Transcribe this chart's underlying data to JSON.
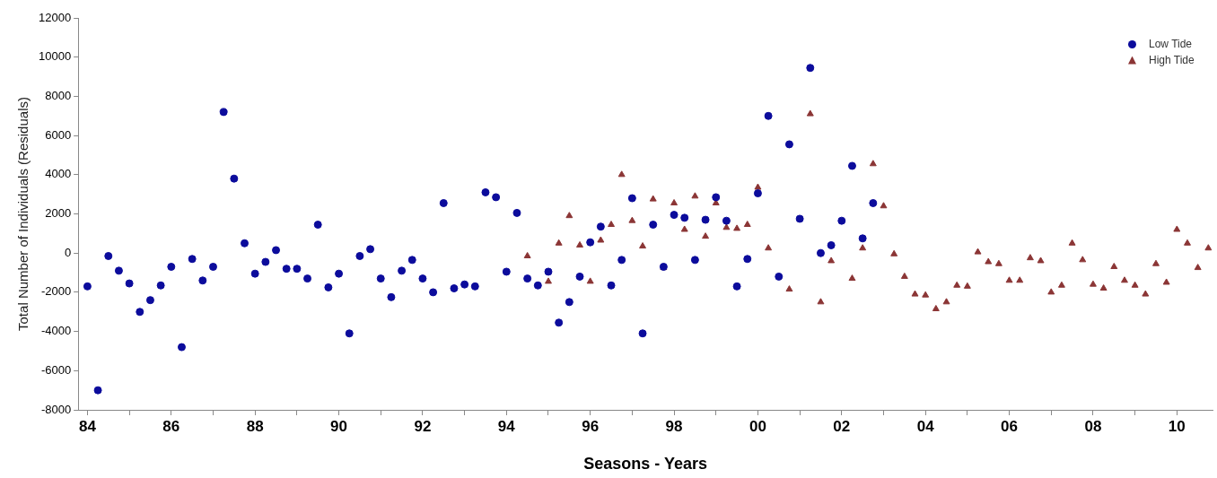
{
  "chart_data": {
    "type": "scatter",
    "xlabel": "Seasons - Years",
    "ylabel": "Total Number of Individuals (Residuals)",
    "xlim": [
      1983.78,
      2010.85
    ],
    "ylim": [
      -8000,
      12000
    ],
    "xticks": [
      {
        "value": 1984,
        "label": "84"
      },
      {
        "value": 1985,
        "label": null
      },
      {
        "value": 1986,
        "label": "86"
      },
      {
        "value": 1987,
        "label": null
      },
      {
        "value": 1988,
        "label": "88"
      },
      {
        "value": 1989,
        "label": null
      },
      {
        "value": 1990,
        "label": "90"
      },
      {
        "value": 1991,
        "label": null
      },
      {
        "value": 1992,
        "label": "92"
      },
      {
        "value": 1993,
        "label": null
      },
      {
        "value": 1994,
        "label": "94"
      },
      {
        "value": 1995,
        "label": null
      },
      {
        "value": 1996,
        "label": "96"
      },
      {
        "value": 1997,
        "label": null
      },
      {
        "value": 1998,
        "label": "98"
      },
      {
        "value": 1999,
        "label": null
      },
      {
        "value": 2000,
        "label": "00"
      },
      {
        "value": 2001,
        "label": null
      },
      {
        "value": 2002,
        "label": "02"
      },
      {
        "value": 2003,
        "label": null
      },
      {
        "value": 2004,
        "label": "04"
      },
      {
        "value": 2005,
        "label": null
      },
      {
        "value": 2006,
        "label": "06"
      },
      {
        "value": 2007,
        "label": null
      },
      {
        "value": 2008,
        "label": "08"
      },
      {
        "value": 2009,
        "label": null
      },
      {
        "value": 2010,
        "label": "10"
      }
    ],
    "yticks": [
      -8000,
      -6000,
      -4000,
      -2000,
      0,
      2000,
      4000,
      6000,
      8000,
      10000,
      12000
    ],
    "grid": false,
    "legend": "top right",
    "series": [
      {
        "name": "Low Tide",
        "color": "#0c0c9c",
        "marker": "circle",
        "x": [
          1984,
          1984.25,
          1984.5,
          1984.75,
          1985,
          1985.25,
          1985.5,
          1985.75,
          1986,
          1986.25,
          1986.5,
          1986.75,
          1987,
          1987.25,
          1987.5,
          1987.75,
          1988,
          1988.25,
          1988.5,
          1988.75,
          1989,
          1989.25,
          1989.5,
          1989.75,
          1990,
          1990.25,
          1990.5,
          1990.75,
          1991,
          1991.25,
          1991.5,
          1991.75,
          1992,
          1992.25,
          1992.5,
          1992.75,
          1993,
          1993.25,
          1993.5,
          1993.75,
          1994,
          1994.25,
          1994.5,
          1994.75,
          1995,
          1995.25,
          1995.5,
          1995.75,
          1996,
          1996.25,
          1996.5,
          1996.75,
          1997,
          1997.25,
          1997.5,
          1997.75,
          1998,
          1998.25,
          1998.5,
          1998.75,
          1999,
          1999.25,
          1999.5,
          1999.75,
          2000,
          2000.25,
          2000.5,
          2000.75,
          2001,
          2001.25,
          2001.5,
          2001.75,
          2002,
          2002.25,
          2002.5,
          2002.75
        ],
        "values": [
          -1700,
          -7000,
          -150,
          -900,
          -1550,
          -3000,
          -2400,
          -1650,
          -700,
          -4800,
          -300,
          -1400,
          -700,
          7200,
          3800,
          500,
          -1050,
          -450,
          150,
          -800,
          -800,
          -1300,
          1450,
          -1750,
          -1050,
          -4100,
          -150,
          200,
          -1300,
          -2250,
          -900,
          -350,
          -1300,
          -2000,
          2550,
          -1800,
          -1600,
          -1700,
          3100,
          2850,
          -950,
          2050,
          -1300,
          -1650,
          -950,
          -3550,
          -2500,
          -1200,
          550,
          1350,
          -1650,
          -350,
          2800,
          -4100,
          1450,
          -700,
          1950,
          1800,
          -350,
          1700,
          2850,
          1650,
          -1700,
          -300,
          3050,
          7000,
          -1200,
          5550,
          1750,
          9450,
          0,
          400,
          1650,
          4450,
          750,
          2550
        ]
      },
      {
        "name": "High Tide",
        "color": "#8b3535",
        "marker": "triangle",
        "x": [
          1994.5,
          1995,
          1995.25,
          1995.5,
          1995.75,
          1996,
          1996.25,
          1996.5,
          1996.75,
          1997,
          1997.25,
          1997.5,
          1997.75,
          1998,
          1998.25,
          1998.5,
          1998.75,
          1999,
          1999.25,
          1999.5,
          1999.75,
          2000,
          2000.25,
          2000.5,
          2000.75,
          2001.25,
          2001.5,
          2001.75,
          2002.25,
          2002.5,
          2002.75,
          2003,
          2003.25,
          2003.5,
          2003.75,
          2004,
          2004.25,
          2004.5,
          2004.75,
          2005,
          2005.25,
          2005.5,
          2005.75,
          2006,
          2006.25,
          2006.5,
          2006.75,
          2007,
          2007.25,
          2007.5,
          2007.75,
          2008,
          2008.25,
          2008.5,
          2008.75,
          2009,
          2009.25,
          2009.5,
          2009.75,
          2010,
          2010.25,
          2010.5,
          2010.75
        ],
        "values": [
          -150,
          -1450,
          500,
          1900,
          400,
          -1450,
          650,
          1450,
          4000,
          1650,
          350,
          2750,
          -750,
          2550,
          1200,
          2900,
          850,
          2550,
          1300,
          1250,
          1450,
          3350,
          250,
          null,
          -1850,
          7100,
          -2500,
          -400,
          -1300,
          250,
          4550,
          2400,
          -50,
          -1200,
          -2100,
          -2150,
          -2850,
          -2500,
          -1650,
          -1700,
          50,
          -450,
          -550,
          -1400,
          -1400,
          -250,
          -400,
          -2000,
          -1650,
          500,
          -350,
          -1600,
          -1800,
          -700,
          -1400,
          -1650,
          -2100,
          -550,
          -1500,
          1200,
          500,
          -750,
          250
        ]
      }
    ]
  }
}
